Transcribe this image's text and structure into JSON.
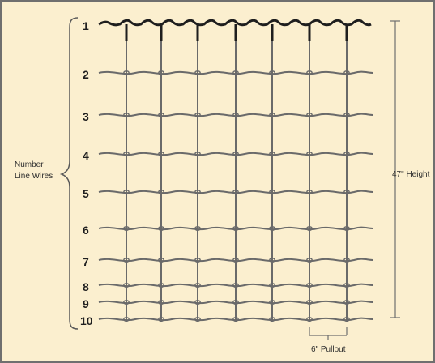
{
  "diagram": {
    "number_labels": [
      "1",
      "2",
      "3",
      "4",
      "5",
      "6",
      "7",
      "8",
      "9",
      "10"
    ],
    "line_wires_label_line1": "Number",
    "line_wires_label_line2": "Line Wires",
    "height_label": "47\" Height",
    "pullout_label": "6\" Pullout",
    "colors": {
      "background": "#fbefcf",
      "frame": "#6f6f6f",
      "wire": "#6a6a6a",
      "top_wire": "#1e1e1e",
      "text": "#1f1f1f"
    }
  }
}
